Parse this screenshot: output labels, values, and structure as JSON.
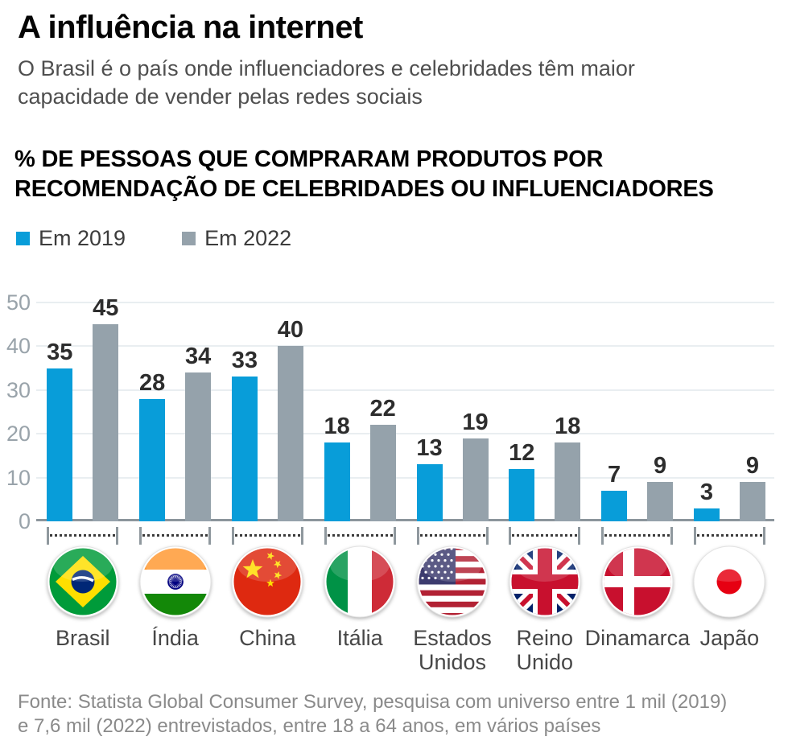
{
  "header": {
    "title": "A influência na internet",
    "subtitle": "O Brasil é o país onde influenciadores e celebridades têm maior\ncapacidade de vender pelas redes sociais"
  },
  "section": {
    "heading": "% DE PESSOAS QUE COMPRARAM PRODUTOS POR\nRECOMENDAÇÃO DE CELEBRIDADES OU INFLUENCIADORES"
  },
  "legend": [
    {
      "label": "Em 2019",
      "color": "#089dd9"
    },
    {
      "label": "Em 2022",
      "color": "#95a2ab"
    }
  ],
  "chart_data": {
    "type": "bar",
    "title": "% de pessoas que compraram produtos por recomendação de celebridades ou influenciadores",
    "categories": [
      "Brasil",
      "Índia",
      "China",
      "Itália",
      "Estados Unidos",
      "Reino Unido",
      "Dinamarca",
      "Japão"
    ],
    "series": [
      {
        "name": "Em 2019",
        "color": "#089dd9",
        "values": [
          35,
          28,
          33,
          18,
          13,
          12,
          7,
          3
        ]
      },
      {
        "name": "Em 2022",
        "color": "#95a2ab",
        "values": [
          45,
          34,
          40,
          22,
          19,
          18,
          9,
          9
        ]
      }
    ],
    "xlabel": "",
    "ylabel": "",
    "ylim": [
      0,
      50
    ],
    "yticks": [
      0,
      10,
      20,
      30,
      40,
      50
    ],
    "grid": true,
    "legend_position": "top-left",
    "flags": [
      "brazil-flag-icon",
      "india-flag-icon",
      "china-flag-icon",
      "italy-flag-icon",
      "usa-flag-icon",
      "uk-flag-icon",
      "denmark-flag-icon",
      "japan-flag-icon"
    ]
  },
  "footer": {
    "source": "Fonte: Statista Global Consumer Survey, pesquisa com universo entre 1 mil (2019)\ne 7,6 mil (2022) entrevistados, entre 18 a 64 anos, em vários países"
  }
}
